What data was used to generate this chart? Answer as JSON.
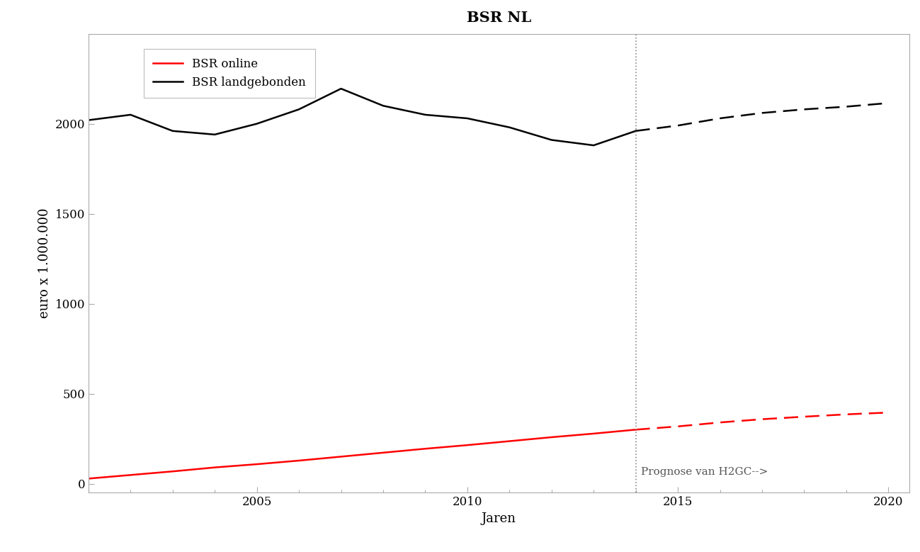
{
  "title": "BSR NL",
  "xlabel": "Jaren",
  "ylabel": "euro x 1.000.000",
  "title_fontsize": 15,
  "label_fontsize": 13,
  "tick_fontsize": 12,
  "background_color": "#ffffff",
  "plot_bg_color": "#ffffff",
  "vline_x": 2014,
  "vline_label": "Prognose van H2GC-->",
  "ylim": [
    -50,
    2500
  ],
  "xlim": [
    2001,
    2020.5
  ],
  "yticks": [
    0,
    500,
    1000,
    1500,
    2000
  ],
  "xticks": [
    2005,
    2010,
    2015,
    2020
  ],
  "legend_labels": [
    "BSR online",
    "BSR landgebonden"
  ],
  "legend_colors": [
    "#ff0000",
    "#000000"
  ],
  "spine_color": "#aaaaaa",
  "bsr_online_solid_x": [
    2001,
    2002,
    2003,
    2004,
    2005,
    2006,
    2007,
    2008,
    2009,
    2010,
    2011,
    2012,
    2013,
    2014
  ],
  "bsr_online_solid_y": [
    28,
    48,
    68,
    90,
    108,
    128,
    150,
    172,
    194,
    214,
    236,
    258,
    278,
    300
  ],
  "bsr_online_dashed_x": [
    2014,
    2015,
    2016,
    2017,
    2018,
    2019,
    2020
  ],
  "bsr_online_dashed_y": [
    300,
    318,
    340,
    358,
    372,
    385,
    395
  ],
  "bsr_land_solid_x": [
    2001,
    2002,
    2003,
    2004,
    2005,
    2006,
    2007,
    2008,
    2009,
    2010,
    2011,
    2012,
    2013,
    2014
  ],
  "bsr_land_solid_y": [
    2020,
    2050,
    1960,
    1940,
    2000,
    2080,
    2195,
    2100,
    2050,
    2030,
    1980,
    1910,
    1880,
    1960
  ],
  "bsr_land_dashed_x": [
    2014,
    2015,
    2016,
    2017,
    2018,
    2019,
    2020
  ],
  "bsr_land_dashed_y": [
    1960,
    1990,
    2030,
    2060,
    2080,
    2095,
    2115
  ]
}
